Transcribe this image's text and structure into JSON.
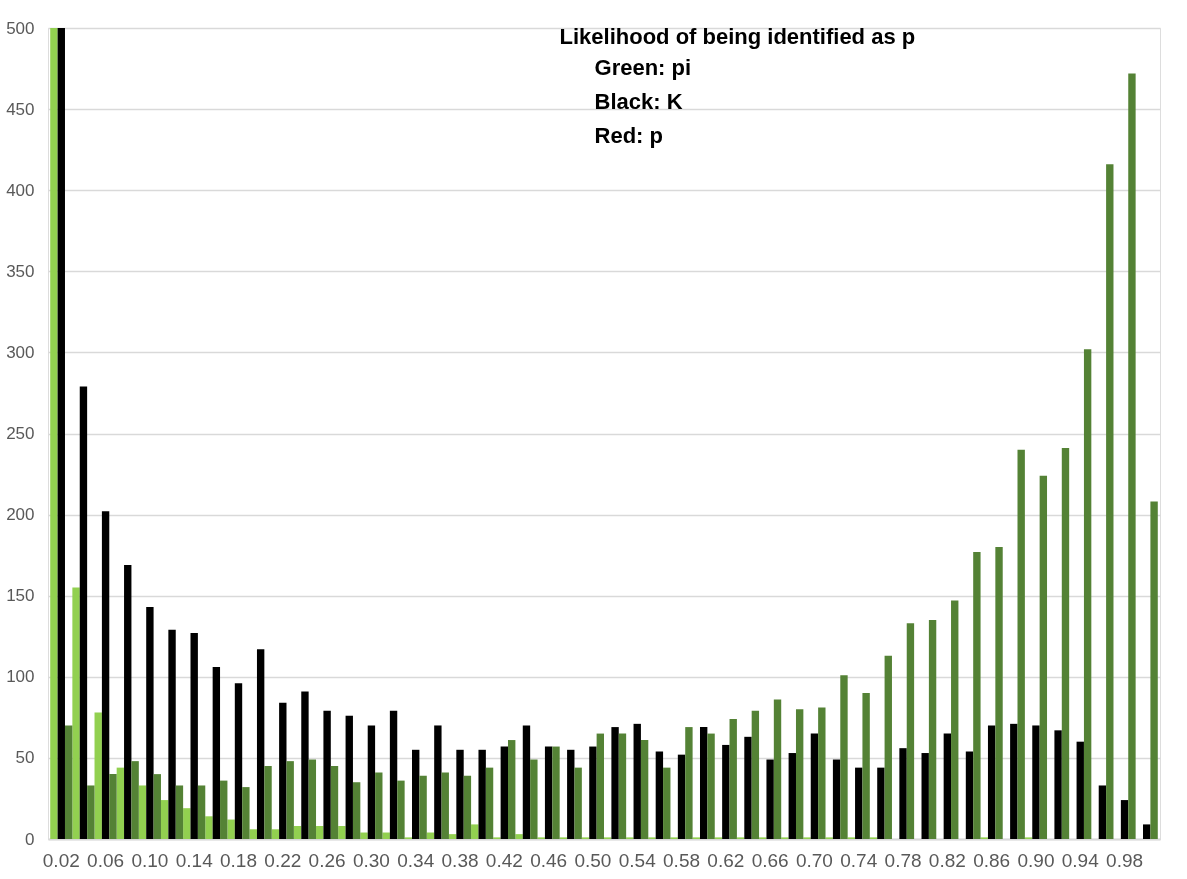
{
  "chart_data": {
    "type": "bar",
    "title": "Likelihood of being identified as p",
    "annotations": [
      "Green: pi",
      "Black: K",
      "Red: p"
    ],
    "categories": [
      "0.02",
      null,
      "0.06",
      null,
      "0.10",
      null,
      "0.14",
      null,
      "0.18",
      null,
      "0.22",
      null,
      "0.26",
      null,
      "0.30",
      null,
      "0.34",
      null,
      "0.38",
      null,
      "0.42",
      null,
      "0.46",
      null,
      "0.50",
      null,
      "0.54",
      null,
      "0.58",
      null,
      "0.62",
      null,
      "0.66",
      null,
      "0.70",
      null,
      "0.74",
      null,
      "0.78",
      null,
      "0.82",
      null,
      "0.86",
      null,
      "0.90",
      null,
      "0.94",
      null,
      "0.98",
      null
    ],
    "series": [
      {
        "color": "#92d050",
        "values": [
          500,
          155,
          78,
          44,
          33,
          24,
          19,
          14,
          12,
          6,
          6,
          8,
          8,
          8,
          4,
          4,
          1,
          4,
          3,
          9,
          1,
          3,
          1,
          1,
          1,
          1,
          1,
          1,
          1,
          1,
          1,
          1,
          1,
          1,
          1,
          1,
          1,
          1,
          0,
          0,
          0,
          0,
          1,
          0,
          1,
          0,
          0,
          0,
          0,
          0
        ]
      },
      {
        "color": "#000000",
        "values": [
          500,
          279,
          202,
          169,
          143,
          129,
          127,
          106,
          96,
          117,
          84,
          91,
          79,
          76,
          70,
          79,
          55,
          70,
          55,
          55,
          57,
          70,
          57,
          55,
          57,
          69,
          71,
          54,
          52,
          69,
          58,
          63,
          49,
          53,
          65,
          49,
          44,
          44,
          56,
          53,
          65,
          54,
          70,
          71,
          70,
          67,
          60,
          33,
          24,
          9
        ]
      },
      {
        "color": "#548235",
        "values": [
          70,
          33,
          40,
          48,
          40,
          33,
          33,
          36,
          32,
          45,
          48,
          49,
          45,
          35,
          41,
          36,
          39,
          41,
          39,
          44,
          61,
          49,
          57,
          44,
          65,
          65,
          61,
          44,
          69,
          65,
          74,
          79,
          86,
          80,
          81,
          101,
          90,
          113,
          133,
          135,
          147,
          177,
          180,
          240,
          224,
          241,
          302,
          416,
          472,
          208
        ]
      }
    ],
    "ylim": [
      0,
      500
    ],
    "yticks": [
      0,
      50,
      100,
      150,
      200,
      250,
      300,
      350,
      400,
      450,
      500
    ],
    "grid": "y",
    "legend": false
  }
}
